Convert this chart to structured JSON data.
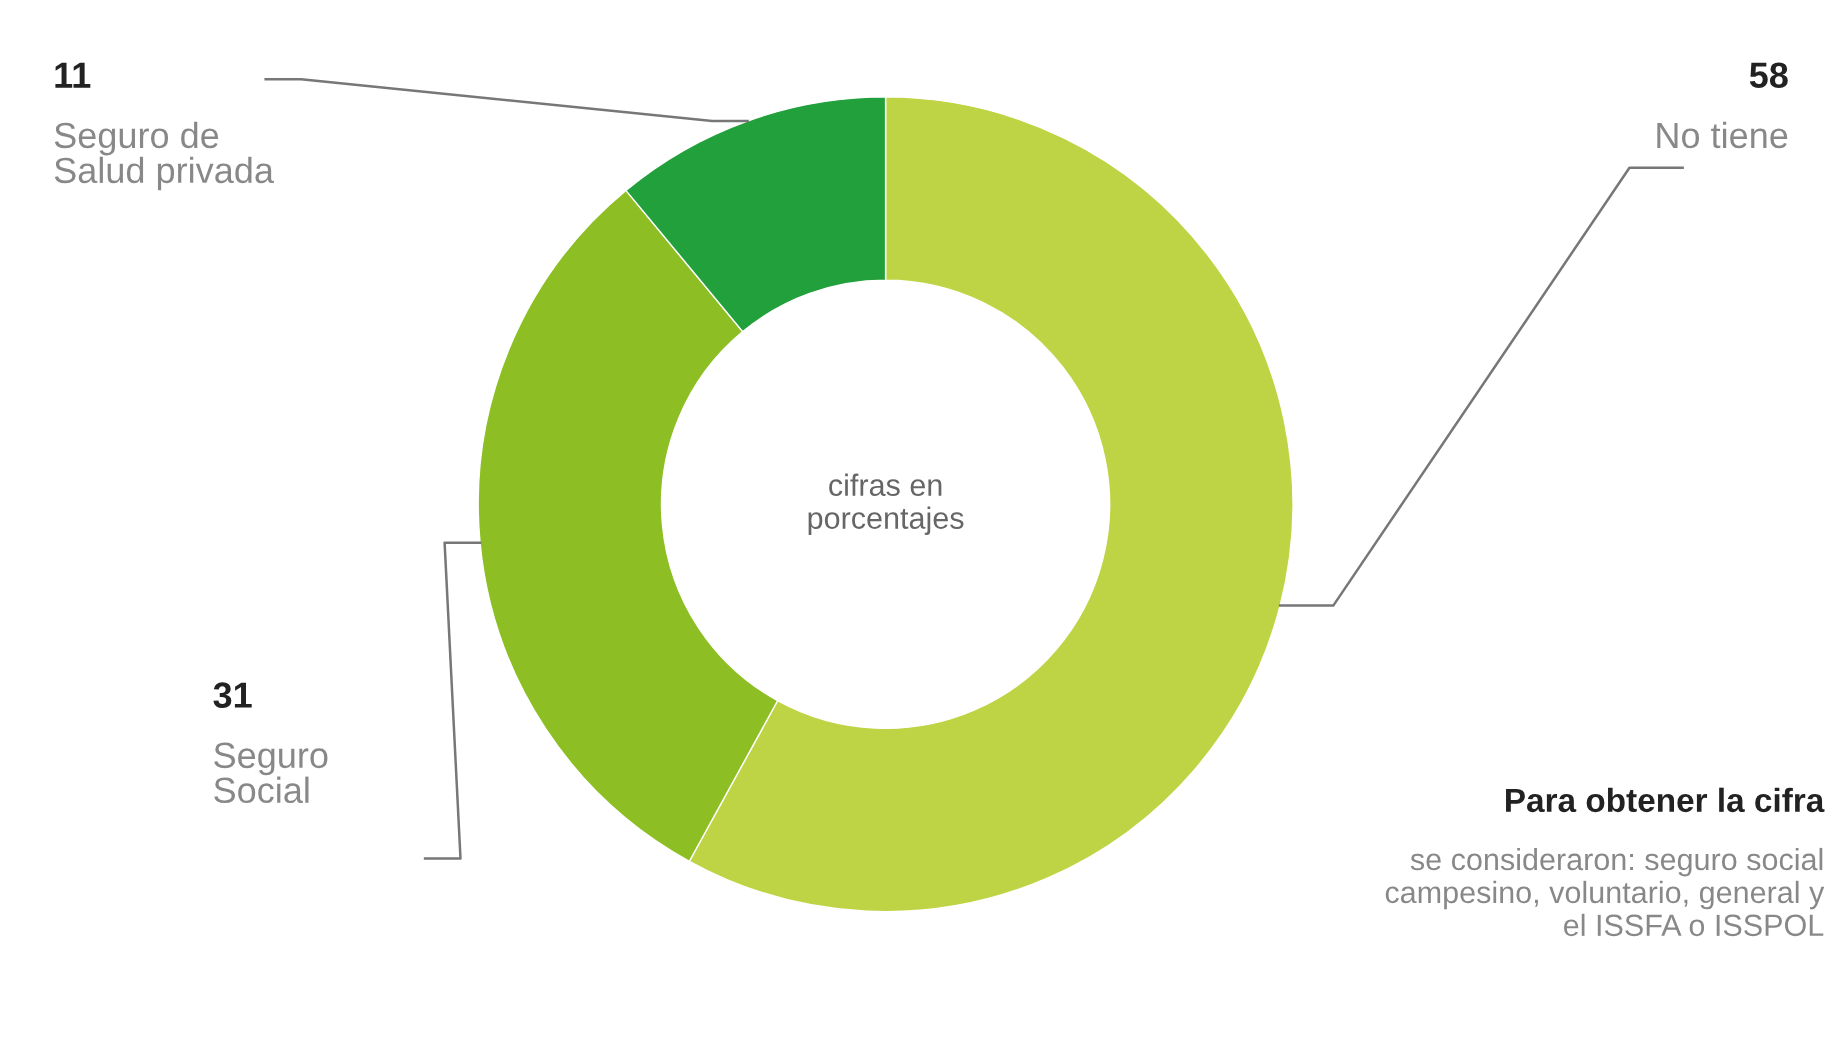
{
  "chart_data": {
    "type": "donut",
    "categories": [
      "No tiene",
      "Seguro\nSocial",
      "Seguro de\nSalud privada"
    ],
    "values": [
      58,
      31,
      11
    ],
    "colors": [
      "#bfd444",
      "#8dbf24",
      "#22a03c"
    ],
    "data_labels": true,
    "annotations": [
      "cifras en\nporcentajes",
      "Para obtener la cifra",
      "se consideraron: seguro social\ncampesino, voluntario, general y\nel ISSFA o ISSPOL"
    ]
  }
}
